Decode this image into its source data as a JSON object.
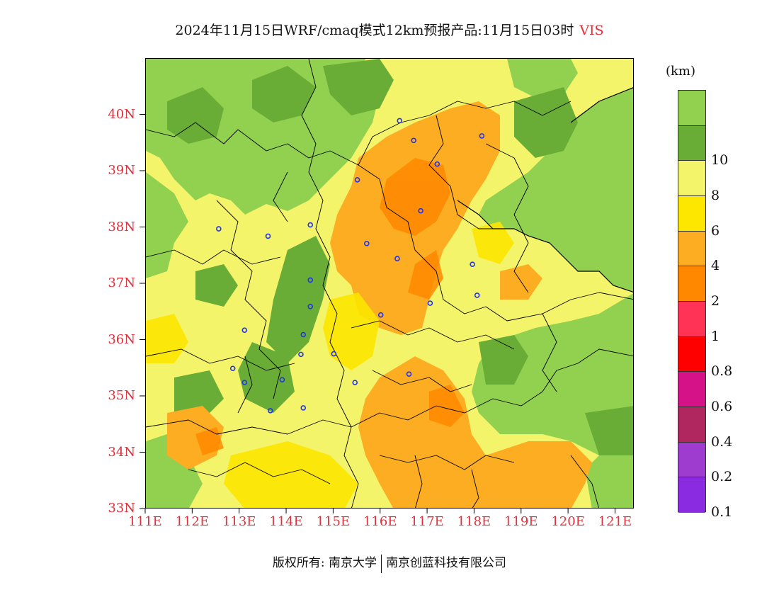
{
  "title": {
    "main": "2024年11月15日WRF/cmaq模式12km预报产品:11月15日03时",
    "variable": "VIS"
  },
  "chart_data": {
    "type": "heatmap",
    "variable": "VIS",
    "unit_label": "(km)",
    "x_axis": {
      "range": [
        111,
        121.4
      ],
      "ticks": [
        111,
        112,
        113,
        114,
        115,
        116,
        117,
        118,
        119,
        120,
        121
      ],
      "tick_labels": [
        "111E",
        "112E",
        "113E",
        "114E",
        "115E",
        "116E",
        "117E",
        "118E",
        "119E",
        "120E",
        "121E"
      ]
    },
    "y_axis": {
      "range": [
        33,
        41
      ],
      "ticks": [
        33,
        34,
        35,
        36,
        37,
        38,
        39,
        40
      ],
      "tick_labels": [
        "33N",
        "34N",
        "35N",
        "36N",
        "37N",
        "38N",
        "39N",
        "40N"
      ]
    },
    "colorbar": {
      "levels_top_to_bottom": [
        "",
        "10",
        "8",
        "6",
        "4",
        "2",
        "1",
        "0.8",
        "0.6",
        "0.4",
        "0.2",
        "0.1"
      ],
      "colors_top_to_bottom": [
        "#92d050",
        "#6aad36",
        "#f4f46a",
        "#fde600",
        "#fcad22",
        "#ff8800",
        "#ff3355",
        "#ff0000",
        "#d51287",
        "#b0265e",
        "#9e3cd0",
        "#8a2be2"
      ]
    },
    "city_markers": [
      [
        116.4,
        39.9
      ],
      [
        116.7,
        39.55
      ],
      [
        117.2,
        39.13
      ],
      [
        118.15,
        39.63
      ],
      [
        115.5,
        38.85
      ],
      [
        116.85,
        38.3
      ],
      [
        114.5,
        38.05
      ],
      [
        112.55,
        37.98
      ],
      [
        113.6,
        37.85
      ],
      [
        115.7,
        37.72
      ],
      [
        116.35,
        37.45
      ],
      [
        117.95,
        37.35
      ],
      [
        114.5,
        37.07
      ],
      [
        118.05,
        36.8
      ],
      [
        117.05,
        36.66
      ],
      [
        114.5,
        36.6
      ],
      [
        116.0,
        36.45
      ],
      [
        113.1,
        36.18
      ],
      [
        114.35,
        36.1
      ],
      [
        115.0,
        35.76
      ],
      [
        114.3,
        35.75
      ],
      [
        112.85,
        35.5
      ],
      [
        116.6,
        35.4
      ],
      [
        113.9,
        35.3
      ],
      [
        113.1,
        35.25
      ],
      [
        115.45,
        35.25
      ],
      [
        114.35,
        34.8
      ],
      [
        113.65,
        34.75
      ]
    ]
  },
  "footer": {
    "copyright_prefix": "版权所有: 南京大学",
    "company": "南京创蓝科技有限公司"
  }
}
